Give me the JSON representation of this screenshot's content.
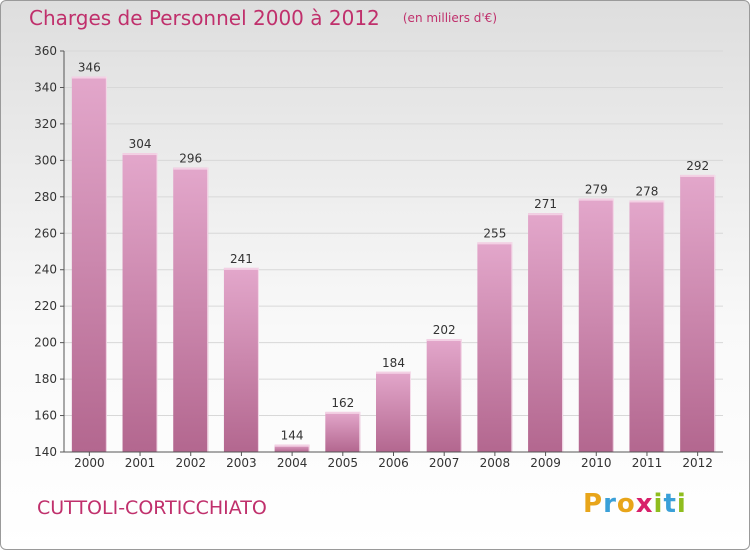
{
  "header": {
    "title": "Charges de Personnel 2000 à 2012",
    "subtitle": "(en milliers d'€)"
  },
  "footer": {
    "commune": "CUTTOLI-CORTICCHIATO",
    "logo_text": "Proxiti",
    "logo_letters": [
      {
        "ch": "P",
        "color": "#e8a51a"
      },
      {
        "ch": "r",
        "color": "#3aa0d8"
      },
      {
        "ch": "o",
        "color": "#e8a51a"
      },
      {
        "ch": "x",
        "color": "#d8206a"
      },
      {
        "ch": "i",
        "color": "#8fbd1e"
      },
      {
        "ch": "t",
        "color": "#3aa0d8"
      },
      {
        "ch": "i",
        "color": "#8fbd1e"
      }
    ]
  },
  "colors": {
    "bar_top": "#e3a7cb",
    "bar_bottom": "#b3678f",
    "bar_edge": "#f3d0e4",
    "grid": "#d8d8d8",
    "axis": "#555555",
    "title": "#c0306c"
  },
  "chart_data": {
    "type": "bar",
    "title": "Charges de Personnel 2000 à 2012",
    "subtitle": "(en milliers d'€)",
    "categories": [
      "2000",
      "2001",
      "2002",
      "2003",
      "2004",
      "2005",
      "2006",
      "2007",
      "2008",
      "2009",
      "2010",
      "2011",
      "2012"
    ],
    "values": [
      346,
      304,
      296,
      241,
      144,
      162,
      184,
      202,
      255,
      271,
      279,
      278,
      292
    ],
    "ylim": [
      140,
      360
    ],
    "yticks": [
      140,
      160,
      180,
      200,
      220,
      240,
      260,
      280,
      300,
      320,
      340,
      360
    ],
    "xlabel": "",
    "ylabel": "",
    "grid": true,
    "legend": "none"
  }
}
